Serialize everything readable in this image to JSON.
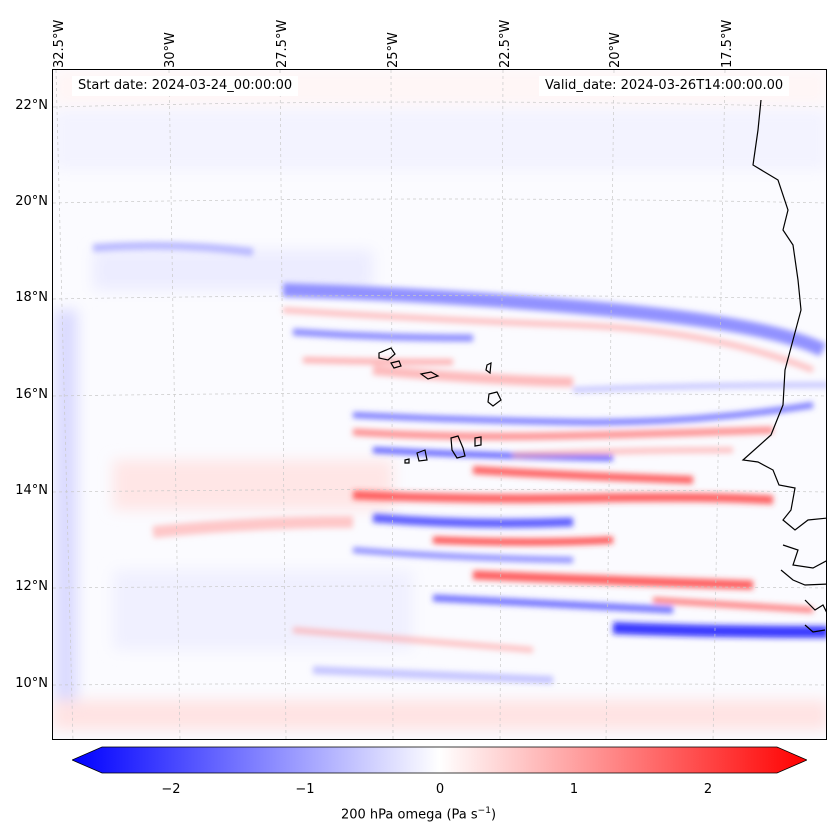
{
  "header": {
    "start_date": "Start date: 2024-03-24_00:00:00",
    "valid_date": "Valid_date: 2024-03-26T14:00:00.00"
  },
  "map": {
    "lon_labels": [
      "32.5°W",
      "30°W",
      "27.5°W",
      "25°W",
      "22.5°W",
      "20°W",
      "17.5°W"
    ],
    "lat_labels": [
      "22°N",
      "20°N",
      "18°N",
      "16°N",
      "14°N",
      "12°N",
      "10°N"
    ],
    "colors": {
      "negative": "#0000ff",
      "zero": "#ffffff",
      "positive": "#ff0000",
      "coast": "#000000"
    }
  },
  "colorbar": {
    "ticks": [
      "−2",
      "−1",
      "0",
      "1",
      "2"
    ],
    "label_text": "200 hPa omega (Pa s",
    "label_exp": "−1",
    "label_end": ")",
    "range": [
      -2.75,
      2.75
    ]
  }
}
